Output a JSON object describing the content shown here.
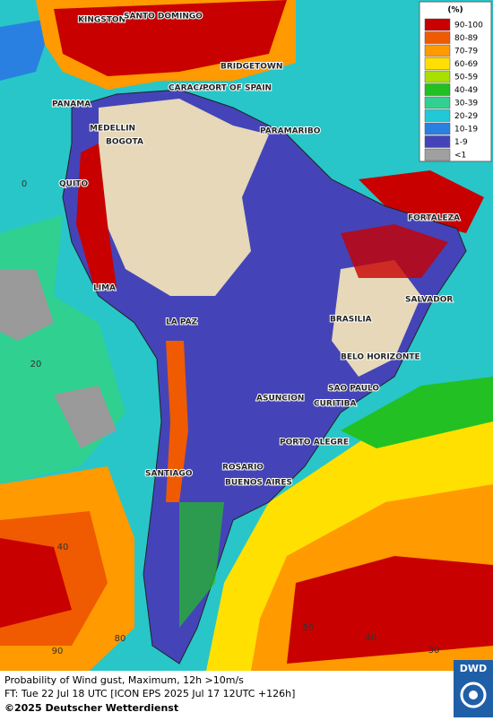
{
  "map": {
    "cities": [
      "KINGSTON",
      "SANTO DOMINGO",
      "BRIDGETOWN",
      "CARACAS",
      "PORT OF SPAIN",
      "PANAMA",
      "MEDELLIN",
      "BOGOTA",
      "PARAMARIBO",
      "QUITO",
      "FORTALEZA",
      "LIMA",
      "SALVADOR",
      "LA PAZ",
      "BRASILIA",
      "BELO HORIZONTE",
      "SAO PAULO",
      "ASUNCION",
      "CURITIBA",
      "PORTO ALEGRE",
      "ROSARIO",
      "SANTIAGO",
      "BUENOS AIRES"
    ],
    "lat_labels": [
      "0",
      "20",
      "40"
    ],
    "lon_labels": [
      "90",
      "80",
      "50",
      "40",
      "30"
    ]
  },
  "legend": {
    "unit": "(%)",
    "classes": [
      {
        "label": "90-100",
        "color": "#c80000"
      },
      {
        "label": "80-89",
        "color": "#f05a00"
      },
      {
        "label": "70-79",
        "color": "#ff9a00"
      },
      {
        "label": "60-69",
        "color": "#ffe000"
      },
      {
        "label": "50-59",
        "color": "#a8e000"
      },
      {
        "label": "40-49",
        "color": "#22c022"
      },
      {
        "label": "30-39",
        "color": "#30d090"
      },
      {
        "label": "20-29",
        "color": "#20c8d8"
      },
      {
        "label": "10-19",
        "color": "#2a80e0"
      },
      {
        "label": "1-9",
        "color": "#4444b8"
      },
      {
        "label": "<1",
        "color": "#a0a0a0"
      }
    ]
  },
  "footer": {
    "line1": "Probability of Wind gust, Maximum, 12h >10m/s",
    "line2": "FT: Tue 22 Jul 18 UTC [ICON EPS 2025 Jul 17 12UTC +126h]",
    "copyright": "©2025 Deutscher Wetterdienst",
    "logo": "DWD"
  }
}
